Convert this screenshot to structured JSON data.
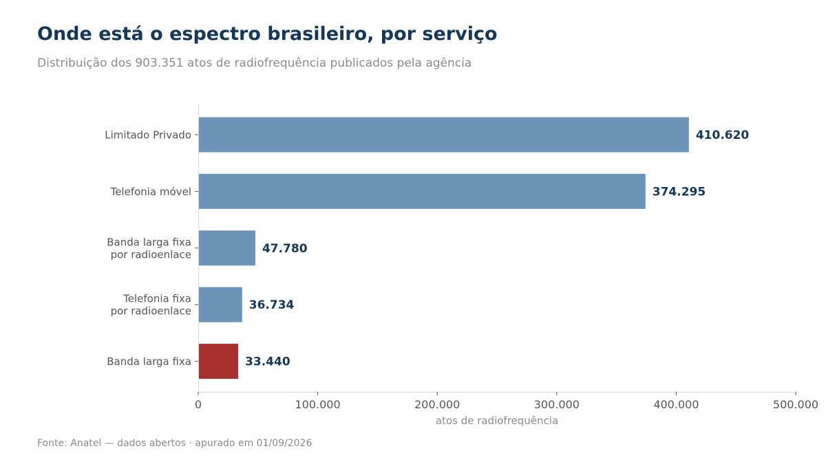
{
  "header": {
    "title": "Onde está o espectro brasileiro, por serviço",
    "subtitle": "Distribuição dos 903.351 atos de radiofrequência publicados pela agência"
  },
  "footer": {
    "source": "Fonte: Anatel — dados abertos · apurado em 01/09/2026"
  },
  "colors": {
    "bar_default": "#6b93b8",
    "bar_highlight": "#a8302e",
    "value_label": "#14375a",
    "axis_text": "#555555",
    "axis_line": "#d9d9d9"
  },
  "chart_data": {
    "type": "bar",
    "orientation": "horizontal",
    "title": "Onde está o espectro brasileiro, por serviço",
    "subtitle": "Distribuição dos 903.351 atos de radiofrequência publicados pela agência",
    "xlabel": "atos de radiofrequência",
    "ylabel": "",
    "xlim": [
      0,
      500000
    ],
    "xticks": [
      0,
      100000,
      200000,
      300000,
      400000,
      500000
    ],
    "xtick_labels": [
      "0",
      "100.000",
      "200.000",
      "300.000",
      "400.000",
      "500.000"
    ],
    "grid": false,
    "categories": [
      [
        "Limitado Privado"
      ],
      [
        "Telefonia móvel"
      ],
      [
        "Banda larga fixa",
        "por radioenlace"
      ],
      [
        "Telefonia fixa",
        "por radioenlace"
      ],
      [
        "Banda larga fixa"
      ]
    ],
    "values": [
      410620,
      374295,
      47780,
      36734,
      33440
    ],
    "value_labels": [
      "410.620",
      "374.295",
      "47.780",
      "36.734",
      "33.440"
    ],
    "highlight_index": 4
  }
}
